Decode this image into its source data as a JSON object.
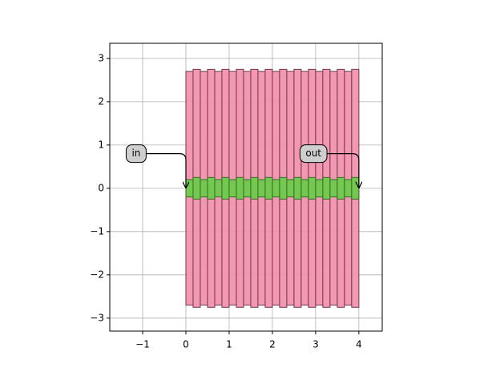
{
  "chart_data": {
    "type": "layout",
    "xlim": [
      -1.76,
      4.54
    ],
    "ylim": [
      -3.3,
      3.35
    ],
    "xticks": [
      {
        "value": -1,
        "label": "−1"
      },
      0,
      1,
      2,
      3,
      4
    ],
    "yticks": [
      {
        "value": -3,
        "label": "−3"
      },
      {
        "value": -2,
        "label": "−2"
      },
      {
        "value": -1,
        "label": "−1"
      },
      0,
      1,
      2,
      3
    ],
    "grid": true,
    "shapes": [
      {
        "color": "#f291ae",
        "edge": "#6e3b4a",
        "width": 0.1667,
        "x": [
          0,
          0.1667,
          0.3333,
          0.5,
          0.6667,
          0.8333,
          1,
          1.1667,
          1.3333,
          1.5,
          1.6667,
          1.8333,
          2,
          2.1667,
          2.3333,
          2.5,
          2.6667,
          2.8333,
          3,
          3.1667,
          3.3333,
          3.5,
          3.6667,
          3.8333
        ],
        "half_heights": [
          2.7,
          2.75,
          2.7,
          2.75,
          2.7,
          2.75,
          2.7,
          2.75,
          2.7,
          2.75,
          2.7,
          2.75,
          2.7,
          2.75,
          2.7,
          2.75,
          2.7,
          2.75,
          2.7,
          2.75,
          2.7,
          2.75,
          2.7,
          2.75
        ]
      },
      {
        "color": "#6ccb4a",
        "edge": "#3b6b2a",
        "width": 0.1667,
        "x": [
          0,
          0.1667,
          0.3333,
          0.5,
          0.6667,
          0.8333,
          1,
          1.1667,
          1.3333,
          1.5,
          1.6667,
          1.8333,
          2,
          2.1667,
          2.3333,
          2.5,
          2.6667,
          2.8333,
          3,
          3.1667,
          3.3333,
          3.5,
          3.6667,
          3.8333
        ],
        "half_heights": [
          0.2,
          0.25,
          0.2,
          0.25,
          0.2,
          0.25,
          0.2,
          0.25,
          0.2,
          0.25,
          0.2,
          0.25,
          0.2,
          0.25,
          0.2,
          0.25,
          0.2,
          0.25,
          0.2,
          0.25,
          0.2,
          0.25,
          0.2,
          0.25
        ]
      }
    ],
    "annotations": [
      {
        "text": "in",
        "xy": [
          0,
          0
        ],
        "xytext": [
          -1.15,
          0.8
        ]
      },
      {
        "text": "out",
        "xy": [
          4,
          0
        ],
        "xytext": [
          2.95,
          0.8
        ]
      }
    ]
  }
}
